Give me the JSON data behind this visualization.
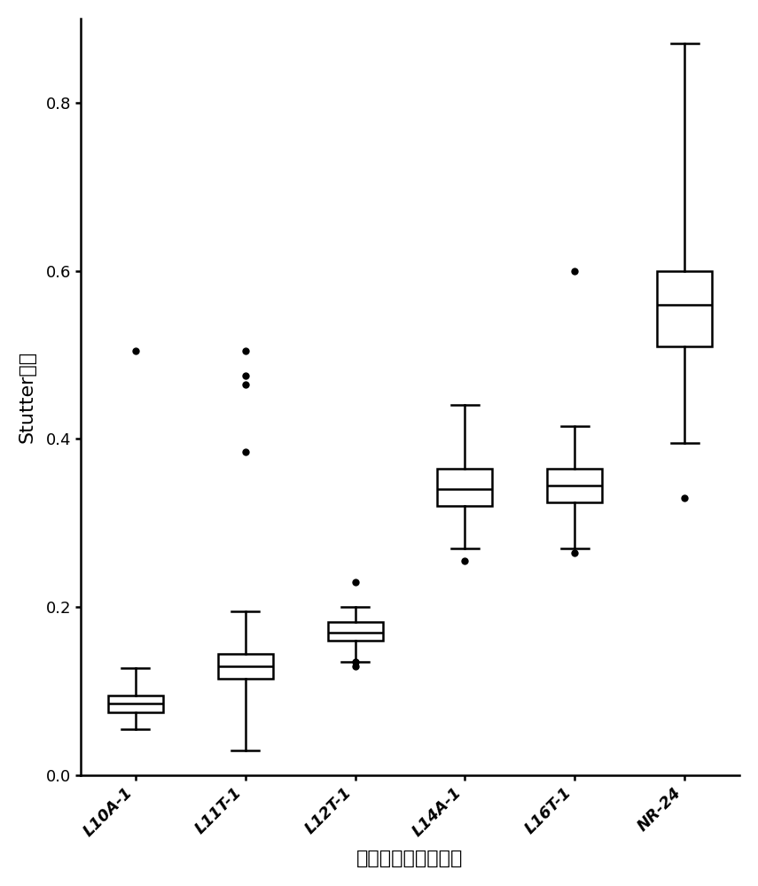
{
  "categories": [
    "L10A-1",
    "L11T-1",
    "L12T-1",
    "L14A-1",
    "L16T-1",
    "NR-24"
  ],
  "xlabel": "不同长度的重复片段",
  "ylabel": "Stutter比例",
  "ylim": [
    0.0,
    0.9
  ],
  "yticks": [
    0.0,
    0.2,
    0.4,
    0.6,
    0.8
  ],
  "background_color": "#ffffff",
  "box_facecolor": "#ffffff",
  "box_edgecolor": "#000000",
  "whisker_color": "#000000",
  "median_color": "#000000",
  "flier_color": "#000000",
  "boxes": [
    {
      "label": "L10A-1",
      "q1": 0.075,
      "median": 0.085,
      "q3": 0.095,
      "whislo": 0.055,
      "whishi": 0.128,
      "fliers": [
        0.505
      ]
    },
    {
      "label": "L11T-1",
      "q1": 0.115,
      "median": 0.13,
      "q3": 0.145,
      "whislo": 0.03,
      "whishi": 0.195,
      "fliers": [
        0.385,
        0.465,
        0.475,
        0.505
      ]
    },
    {
      "label": "L12T-1",
      "q1": 0.16,
      "median": 0.17,
      "q3": 0.182,
      "whislo": 0.135,
      "whishi": 0.2,
      "fliers": [
        0.13,
        0.135,
        0.23
      ]
    },
    {
      "label": "L14A-1",
      "q1": 0.32,
      "median": 0.34,
      "q3": 0.365,
      "whislo": 0.27,
      "whishi": 0.44,
      "fliers": [
        0.255
      ]
    },
    {
      "label": "L16T-1",
      "q1": 0.325,
      "median": 0.345,
      "q3": 0.365,
      "whislo": 0.27,
      "whishi": 0.415,
      "fliers": [
        0.265,
        0.6
      ]
    },
    {
      "label": "NR-24",
      "q1": 0.51,
      "median": 0.56,
      "q3": 0.6,
      "whislo": 0.395,
      "whishi": 0.87,
      "fliers": [
        0.33
      ]
    }
  ],
  "linewidth": 1.8,
  "flier_markersize": 5,
  "title_fontsize": 14,
  "label_fontsize": 16,
  "tick_fontsize": 13
}
